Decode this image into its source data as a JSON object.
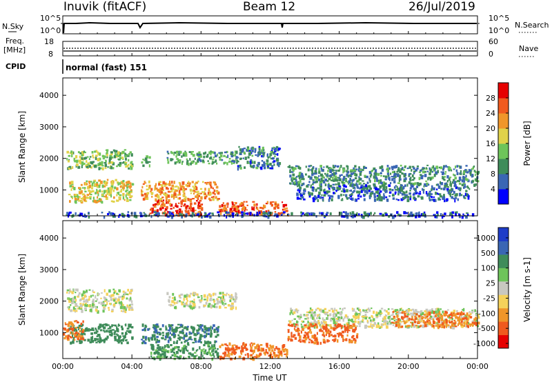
{
  "header": {
    "station": "Inuvik (fitACF)",
    "beam": "Beam 12",
    "date": "26/Jul/2019"
  },
  "nsky_panel": {
    "left_label": "N.Sky",
    "right_label": "N.Search",
    "left_ticks": [
      "10^5",
      "10^0"
    ],
    "right_ticks": [
      "10^5",
      "10^0"
    ]
  },
  "freq_panel": {
    "left_label_1": "Freq.",
    "left_label_2": "[MHz]",
    "right_label": "Nave",
    "left_ticks": [
      "18",
      "8"
    ],
    "right_ticks": [
      "60",
      "0"
    ]
  },
  "cpid": {
    "label": "CPID",
    "text": "normal (fast) 151"
  },
  "colors": {
    "power_scale": [
      "#0000ff",
      "#3a66b4",
      "#3f8c5a",
      "#6ec45a",
      "#e0d24a",
      "#f0962a",
      "#f05a1e",
      "#e60000"
    ],
    "velocity_scale": [
      "#e60000",
      "#f05a1e",
      "#f0962a",
      "#f5d25a",
      "#c8c8c0",
      "#6ec45a",
      "#3f8c5a",
      "#3a66b4",
      "#1e3cc8"
    ]
  },
  "chart_data": [
    {
      "type": "heatmap",
      "name": "power",
      "ylabel": "Slant Range [km]",
      "y_ticks": [
        1000,
        2000,
        3000,
        4000
      ],
      "x_ticks": [
        "00:00",
        "04:00",
        "08:00",
        "12:00",
        "16:00",
        "20:00",
        "00:00"
      ],
      "xlim_hours": [
        0,
        24
      ],
      "ylim_km": [
        180,
        4550
      ],
      "colorbar": {
        "label": "Power [dB]",
        "ticks": [
          4,
          8,
          12,
          16,
          20,
          24,
          28
        ],
        "range": [
          0,
          32
        ]
      },
      "echo_regions": [
        {
          "t_start": 0.2,
          "t_end": 4.0,
          "r_low": 1700,
          "r_high": 2300,
          "level": 14
        },
        {
          "t_start": 4.5,
          "t_end": 5.0,
          "r_low": 1800,
          "r_high": 2100,
          "level": 12
        },
        {
          "t_start": 6.0,
          "t_end": 10.0,
          "r_low": 1850,
          "r_high": 2250,
          "level": 11
        },
        {
          "t_start": 10.0,
          "t_end": 12.5,
          "r_low": 1700,
          "r_high": 2400,
          "level": 8
        },
        {
          "t_start": 0.3,
          "t_end": 4.0,
          "r_low": 650,
          "r_high": 1350,
          "level": 18
        },
        {
          "t_start": 4.5,
          "t_end": 9.0,
          "r_low": 700,
          "r_high": 1300,
          "level": 22
        },
        {
          "t_start": 5.0,
          "t_end": 8.0,
          "r_low": 200,
          "r_high": 700,
          "level": 28
        },
        {
          "t_start": 9.0,
          "t_end": 13.0,
          "r_low": 250,
          "r_high": 650,
          "level": 26
        },
        {
          "t_start": 13.0,
          "t_end": 24.0,
          "r_low": 1200,
          "r_high": 1800,
          "level": 9
        },
        {
          "t_start": 13.5,
          "t_end": 23.5,
          "r_low": 700,
          "r_high": 1200,
          "level": 7
        },
        {
          "t_start": 0.0,
          "t_end": 24.0,
          "r_low": 180,
          "r_high": 330,
          "level": 6
        }
      ]
    },
    {
      "type": "heatmap",
      "name": "velocity",
      "ylabel": "Slant Range [km]",
      "y_ticks": [
        1000,
        2000,
        3000,
        4000
      ],
      "x_ticks": [
        "00:00",
        "04:00",
        "08:00",
        "12:00",
        "16:00",
        "20:00",
        "00:00"
      ],
      "xlabel": "Time UT",
      "xlim_hours": [
        0,
        24
      ],
      "ylim_km": [
        180,
        4550
      ],
      "colorbar": {
        "label": "Velocity [m s-1]",
        "ticks": [
          "1000",
          "500",
          "100",
          "25",
          "-25",
          "-100",
          "-500",
          "-1000"
        ]
      },
      "echo_regions": [
        {
          "t_start": 0.2,
          "t_end": 4.0,
          "r_low": 1700,
          "r_high": 2400,
          "velocity": 0
        },
        {
          "t_start": 6.0,
          "t_end": 10.0,
          "r_low": 1800,
          "r_high": 2300,
          "velocity": 0
        },
        {
          "t_start": 13.0,
          "t_end": 24.0,
          "r_low": 1200,
          "r_high": 1800,
          "velocity": 0
        },
        {
          "t_start": 0.3,
          "t_end": 4.0,
          "r_low": 700,
          "r_high": 1300,
          "velocity": 150
        },
        {
          "t_start": 4.5,
          "t_end": 9.0,
          "r_low": 700,
          "r_high": 1300,
          "velocity": 250
        },
        {
          "t_start": 5.0,
          "t_end": 9.0,
          "r_low": 200,
          "r_high": 650,
          "velocity": 80
        },
        {
          "t_start": 0.0,
          "t_end": 1.2,
          "r_low": 800,
          "r_high": 1400,
          "velocity": -300
        },
        {
          "t_start": 9.0,
          "t_end": 13.0,
          "r_low": 200,
          "r_high": 700,
          "velocity": -300
        },
        {
          "t_start": 13.0,
          "t_end": 17.0,
          "r_low": 700,
          "r_high": 1300,
          "velocity": -400
        },
        {
          "t_start": 19.0,
          "t_end": 24.0,
          "r_low": 1200,
          "r_high": 1700,
          "velocity": -300
        }
      ]
    }
  ]
}
